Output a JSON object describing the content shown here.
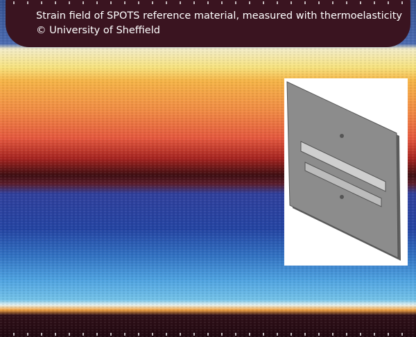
{
  "caption": {
    "line1": "Strain field of SPOTS reference material, measured with thermoelasticity",
    "line2": "© University of Sheffield"
  }
}
